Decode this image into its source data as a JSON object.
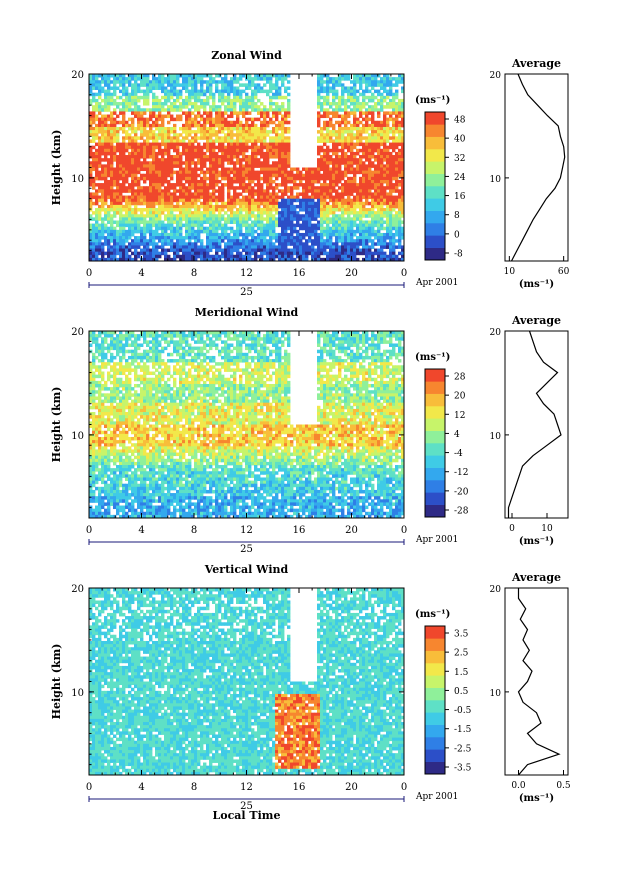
{
  "figure": {
    "xlabel": "Local Time",
    "xtick_labels": [
      "0",
      "4",
      "8",
      "12",
      "16",
      "20",
      "0"
    ],
    "day_label": "25",
    "date_label": "Apr 2001",
    "ylabel": "Height (km)",
    "ytick_labels": [
      "10",
      "20"
    ]
  },
  "colormap": [
    "#2e2a86",
    "#2c4fc8",
    "#2f7fe6",
    "#33a8ee",
    "#3fcbe6",
    "#5ee0c6",
    "#8ff09a",
    "#c7f46a",
    "#f2e84a",
    "#f8bd3a",
    "#f7862f",
    "#f0472c"
  ],
  "chart_data": [
    {
      "type": "heatmap",
      "title": "Zonal Wind",
      "x_range_hours": [
        0,
        24
      ],
      "y_range_km": [
        2,
        20
      ],
      "colorbar": {
        "unit": "(ms⁻¹)",
        "ticks": [
          "48",
          "40",
          "32",
          "24",
          "16",
          "8",
          "0",
          "-8"
        ]
      },
      "profile_from_image": [
        [
          2,
          12
        ],
        [
          3,
          17
        ],
        [
          4,
          22
        ],
        [
          5,
          27
        ],
        [
          6,
          32
        ],
        [
          7,
          38
        ],
        [
          8,
          44
        ],
        [
          9,
          52
        ],
        [
          10,
          57
        ],
        [
          11,
          59
        ],
        [
          12,
          61
        ],
        [
          13,
          60
        ],
        [
          14,
          57
        ],
        [
          15,
          55
        ],
        [
          16,
          45
        ],
        [
          17,
          36
        ],
        [
          18,
          27
        ],
        [
          19,
          22
        ],
        [
          20,
          18
        ]
      ],
      "profile": {
        "title": "Average",
        "xlabel": "(ms⁻¹)",
        "xlim": [
          6,
          64
        ],
        "ylim": [
          2,
          20
        ],
        "xtick_values": [
          10,
          60
        ],
        "xtick_labels": [
          "10",
          "60"
        ],
        "ytick_labels": [
          "10",
          "20"
        ],
        "points": [
          [
            12,
            2
          ],
          [
            17,
            3
          ],
          [
            22,
            4
          ],
          [
            27,
            5
          ],
          [
            32,
            6
          ],
          [
            38,
            7
          ],
          [
            44,
            8
          ],
          [
            52,
            9
          ],
          [
            57,
            10
          ],
          [
            59,
            11
          ],
          [
            61,
            12
          ],
          [
            60,
            13
          ],
          [
            57,
            14
          ],
          [
            55,
            15
          ],
          [
            45,
            16
          ],
          [
            36,
            17
          ],
          [
            27,
            18
          ],
          [
            22,
            19
          ],
          [
            18,
            20
          ]
        ]
      }
    },
    {
      "type": "heatmap",
      "title": "Meridional Wind",
      "x_range_hours": [
        0,
        24
      ],
      "y_range_km": [
        2,
        20
      ],
      "colorbar": {
        "unit": "(ms⁻¹)",
        "ticks": [
          "28",
          "20",
          "12",
          "4",
          "-4",
          "-12",
          "-20",
          "-28"
        ]
      },
      "profile": {
        "title": "Average",
        "xlabel": "(ms⁻¹)",
        "xlim": [
          -2,
          16
        ],
        "ylim": [
          2,
          20
        ],
        "xtick_values": [
          0,
          10
        ],
        "xtick_labels": [
          "0",
          "10"
        ],
        "ytick_labels": [
          "10",
          "20"
        ],
        "points": [
          [
            -1,
            2
          ],
          [
            -1,
            3
          ],
          [
            0,
            4
          ],
          [
            1,
            5
          ],
          [
            2,
            6
          ],
          [
            3,
            7
          ],
          [
            6,
            8
          ],
          [
            10,
            9
          ],
          [
            14,
            10
          ],
          [
            13,
            11
          ],
          [
            12,
            12
          ],
          [
            9,
            13
          ],
          [
            7,
            14
          ],
          [
            10,
            15
          ],
          [
            13,
            16
          ],
          [
            9,
            17
          ],
          [
            7,
            18
          ],
          [
            6,
            19
          ],
          [
            5,
            20
          ]
        ]
      }
    },
    {
      "type": "heatmap",
      "title": "Vertical Wind",
      "x_range_hours": [
        0,
        24
      ],
      "y_range_km": [
        2,
        20
      ],
      "colorbar": {
        "unit": "(ms⁻¹)",
        "ticks": [
          "3.5",
          "2.5",
          "1.5",
          "0.5",
          "-0.5",
          "-1.5",
          "-2.5",
          "-3.5"
        ]
      },
      "profile": {
        "title": "Average",
        "xlabel": "(ms⁻¹)",
        "xlim": [
          -0.15,
          0.55
        ],
        "ylim": [
          2,
          20
        ],
        "xtick_values": [
          0,
          0.5
        ],
        "xtick_labels": [
          "0.0",
          "0.5"
        ],
        "ytick_labels": [
          "10",
          "20"
        ],
        "points": [
          [
            0.0,
            2
          ],
          [
            0.1,
            3
          ],
          [
            0.45,
            4
          ],
          [
            0.2,
            5
          ],
          [
            0.1,
            6
          ],
          [
            0.25,
            7
          ],
          [
            0.2,
            8
          ],
          [
            0.05,
            9
          ],
          [
            0.0,
            10
          ],
          [
            0.1,
            11
          ],
          [
            0.15,
            12
          ],
          [
            0.05,
            13
          ],
          [
            0.12,
            14
          ],
          [
            0.05,
            15
          ],
          [
            0.1,
            16
          ],
          [
            0.02,
            17
          ],
          [
            0.08,
            18
          ],
          [
            0.0,
            19
          ],
          [
            0.0,
            20
          ]
        ]
      }
    }
  ]
}
